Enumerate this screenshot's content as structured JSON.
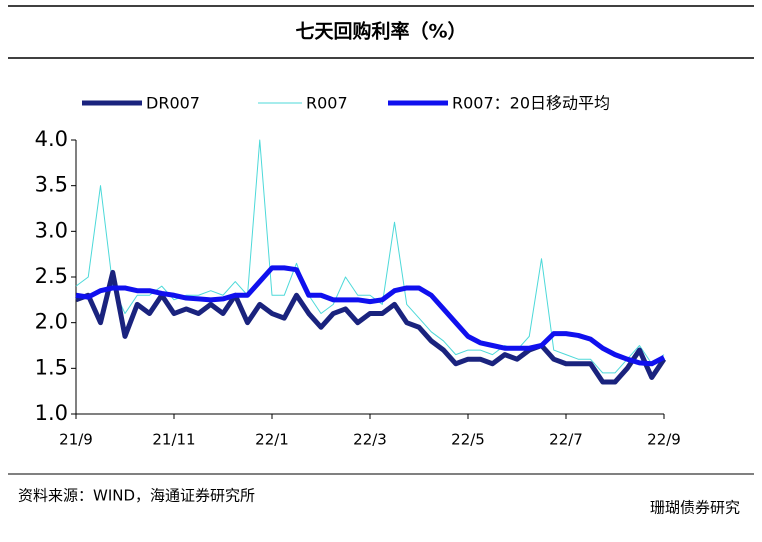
{
  "chart_data": {
    "type": "line",
    "title": "七天回购利率（%）",
    "source": "资料来源：WIND，海通证券研究所",
    "watermark": "珊瑚债券研究",
    "categories": [
      "21/9",
      null,
      null,
      null,
      null,
      null,
      null,
      null,
      "21/11",
      null,
      null,
      null,
      null,
      null,
      null,
      null,
      "22/1",
      null,
      null,
      null,
      null,
      null,
      null,
      null,
      "22/3",
      null,
      null,
      null,
      null,
      null,
      null,
      null,
      "22/5",
      null,
      null,
      null,
      null,
      null,
      null,
      null,
      "22/7",
      null,
      null,
      null,
      null,
      null,
      null,
      null,
      "22/9"
    ],
    "series": [
      {
        "name": "DR007",
        "color": "#1a237e",
        "width": 5,
        "values": [
          2.25,
          2.3,
          2.0,
          2.55,
          1.85,
          2.2,
          2.1,
          2.3,
          2.1,
          2.15,
          2.1,
          2.2,
          2.1,
          2.3,
          2.0,
          2.2,
          2.1,
          2.05,
          2.3,
          2.1,
          1.95,
          2.1,
          2.15,
          2.0,
          2.1,
          2.1,
          2.2,
          2.0,
          1.95,
          1.8,
          1.7,
          1.55,
          1.6,
          1.6,
          1.55,
          1.65,
          1.6,
          1.7,
          1.75,
          1.6,
          1.55,
          1.55,
          1.55,
          1.35,
          1.35,
          1.5,
          1.7,
          1.4,
          1.6
        ]
      },
      {
        "name": "R007",
        "color": "#4dd9d9",
        "width": 1,
        "values": [
          2.4,
          2.5,
          3.5,
          2.4,
          2.1,
          2.3,
          2.3,
          2.4,
          2.25,
          2.3,
          2.3,
          2.35,
          2.3,
          2.45,
          2.3,
          4.0,
          2.3,
          2.3,
          2.65,
          2.3,
          2.1,
          2.2,
          2.5,
          2.3,
          2.3,
          2.2,
          3.1,
          2.2,
          2.05,
          1.9,
          1.8,
          1.65,
          1.7,
          1.7,
          1.65,
          1.75,
          1.7,
          1.85,
          2.7,
          1.7,
          1.65,
          1.6,
          1.6,
          1.45,
          1.45,
          1.6,
          1.75,
          1.55,
          1.65
        ]
      },
      {
        "name": "R007：20日移动平均",
        "color": "#1010ee",
        "width": 5,
        "values": [
          2.3,
          2.28,
          2.35,
          2.38,
          2.38,
          2.35,
          2.35,
          2.32,
          2.3,
          2.27,
          2.26,
          2.25,
          2.26,
          2.3,
          2.3,
          2.45,
          2.6,
          2.6,
          2.58,
          2.3,
          2.3,
          2.25,
          2.25,
          2.25,
          2.23,
          2.25,
          2.35,
          2.38,
          2.38,
          2.3,
          2.15,
          2.0,
          1.85,
          1.78,
          1.75,
          1.72,
          1.72,
          1.72,
          1.75,
          1.88,
          1.88,
          1.86,
          1.82,
          1.72,
          1.65,
          1.6,
          1.56,
          1.55,
          1.62
        ]
      }
    ],
    "ylim": [
      1,
      4
    ],
    "yticks": [
      {
        "value": 1,
        "label": "1.0"
      },
      1.5,
      {
        "value": 2,
        "label": "2.0"
      },
      2.5,
      {
        "value": 3,
        "label": "3.0"
      },
      3.5,
      {
        "value": 4,
        "label": "4.0"
      }
    ],
    "legend": "top"
  }
}
